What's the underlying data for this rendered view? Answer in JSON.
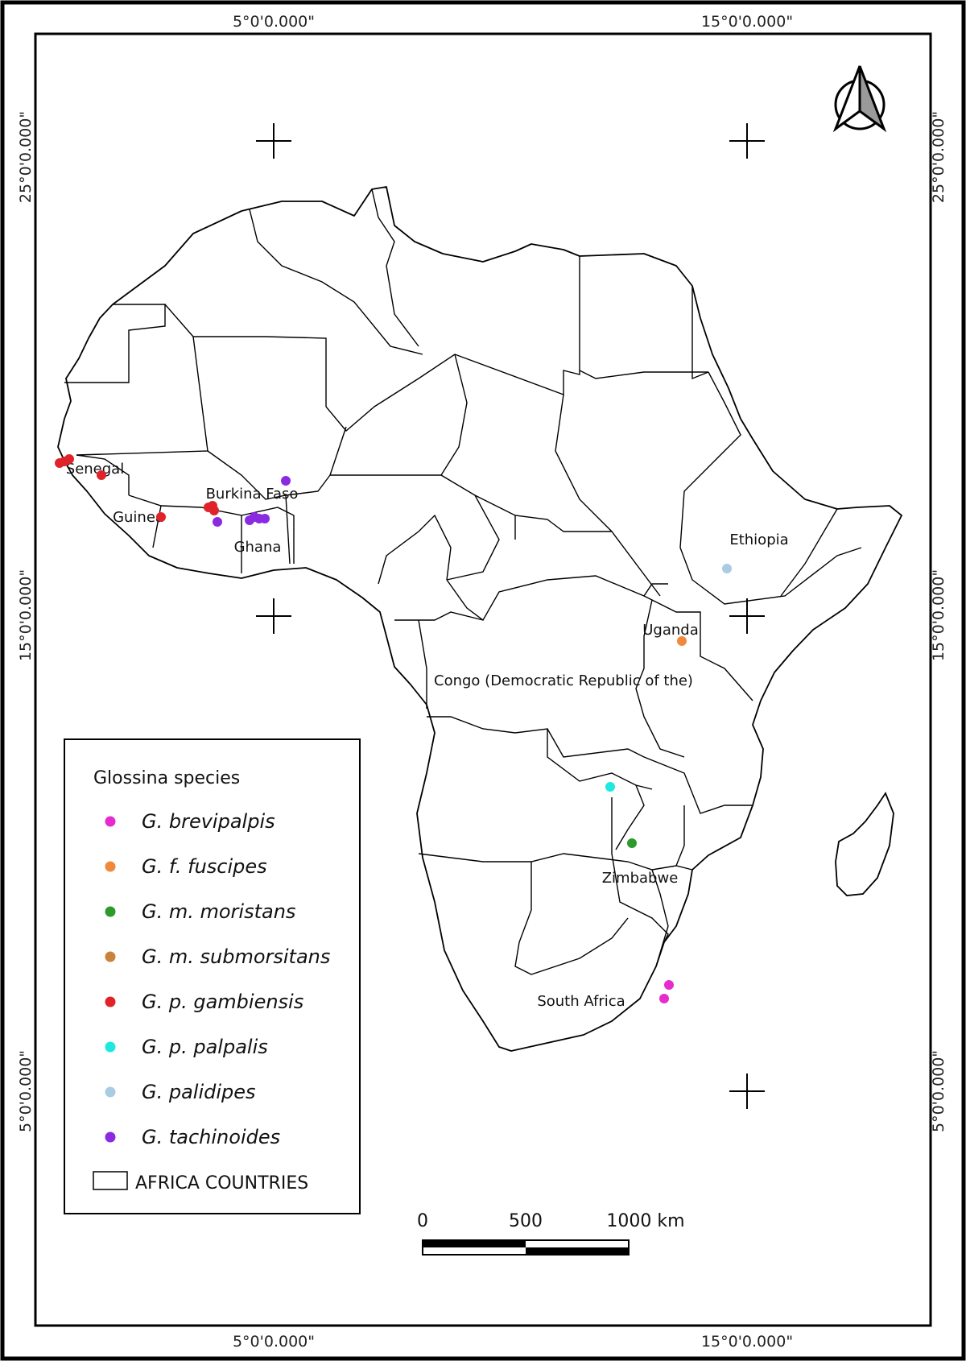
{
  "coordinates": {
    "top": [
      "5°0'0.000\"",
      "15°0'0.000\""
    ],
    "bottom": [
      "5°0'0.000\"",
      "15°0'0.000\""
    ],
    "left": [
      "25°0'0.000\"",
      "15°0'0.000\"",
      "5°0'0.000\""
    ],
    "right": [
      "25°0'0.000\"",
      "15°0'0.000\"",
      "5°0'0.000\""
    ]
  },
  "country_labels": [
    "Senegal",
    "Burkina Faso",
    "Guinea",
    "Ghana",
    "Ethiopia",
    "Uganda",
    "Congo (Democratic Republic of the)",
    "Zimbabwe",
    "South Africa"
  ],
  "legend": {
    "title": "Glossina species",
    "items": [
      {
        "label": "G. brevipalpis",
        "color": "#e62ccf"
      },
      {
        "label": "G. f. fuscipes",
        "color": "#f08a3a"
      },
      {
        "label": "G. m. moristans",
        "color": "#2e9a2e"
      },
      {
        "label": "G. m. submorsitans",
        "color": "#c8843c"
      },
      {
        "label": "G. p. gambiensis",
        "color": "#e0232a"
      },
      {
        "label": "G. p. palpalis",
        "color": "#1ee8e0"
      },
      {
        "label": "G. palidipes",
        "color": "#a9cce3"
      },
      {
        "label": "G. tachinoides",
        "color": "#8a2be2"
      }
    ],
    "polygon_label": "AFRICA COUNTRIES"
  },
  "scale_bar": {
    "labels": [
      "0",
      "500",
      "1000 km"
    ]
  },
  "north_arrow": "north-arrow-icon"
}
